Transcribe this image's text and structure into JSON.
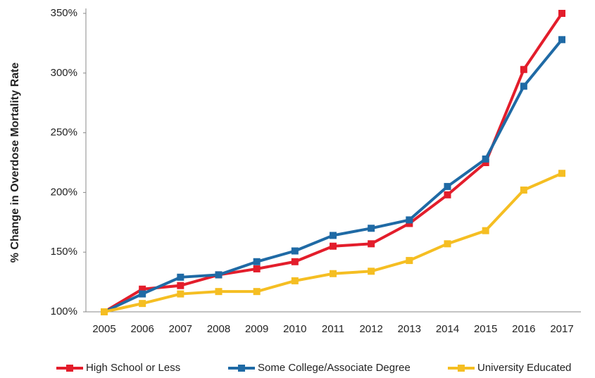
{
  "chart_data": {
    "type": "line",
    "y_label": "% Change in Overdose Mortality Rate",
    "categories": [
      "2005",
      "2006",
      "2007",
      "2008",
      "2009",
      "2010",
      "2011",
      "2012",
      "2013",
      "2014",
      "2015",
      "2016",
      "2017"
    ],
    "series": [
      {
        "name": "High School or Less",
        "color": "#e31d2b",
        "values": [
          100,
          119,
          122,
          131,
          136,
          142,
          155,
          157,
          174,
          198,
          225,
          303,
          350
        ]
      },
      {
        "name": "Some College/Associate Degree",
        "color": "#1f6aa5",
        "values": [
          100,
          115,
          129,
          131,
          142,
          151,
          164,
          170,
          177,
          205,
          228,
          289,
          328
        ]
      },
      {
        "name": "University Educated",
        "color": "#f5be22",
        "values": [
          100,
          107,
          115,
          117,
          117,
          126,
          132,
          134,
          143,
          157,
          168,
          202,
          216
        ]
      }
    ],
    "ylim": [
      100,
      350
    ],
    "yticks": [
      {
        "value": 100,
        "label": "100%"
      },
      {
        "value": 150,
        "label": "150%"
      },
      {
        "value": 200,
        "label": "200%"
      },
      {
        "value": 250,
        "label": "250%"
      },
      {
        "value": 300,
        "label": "300%"
      },
      {
        "value": 350,
        "label": "350%"
      }
    ],
    "grid": false,
    "legend": "bottom"
  }
}
